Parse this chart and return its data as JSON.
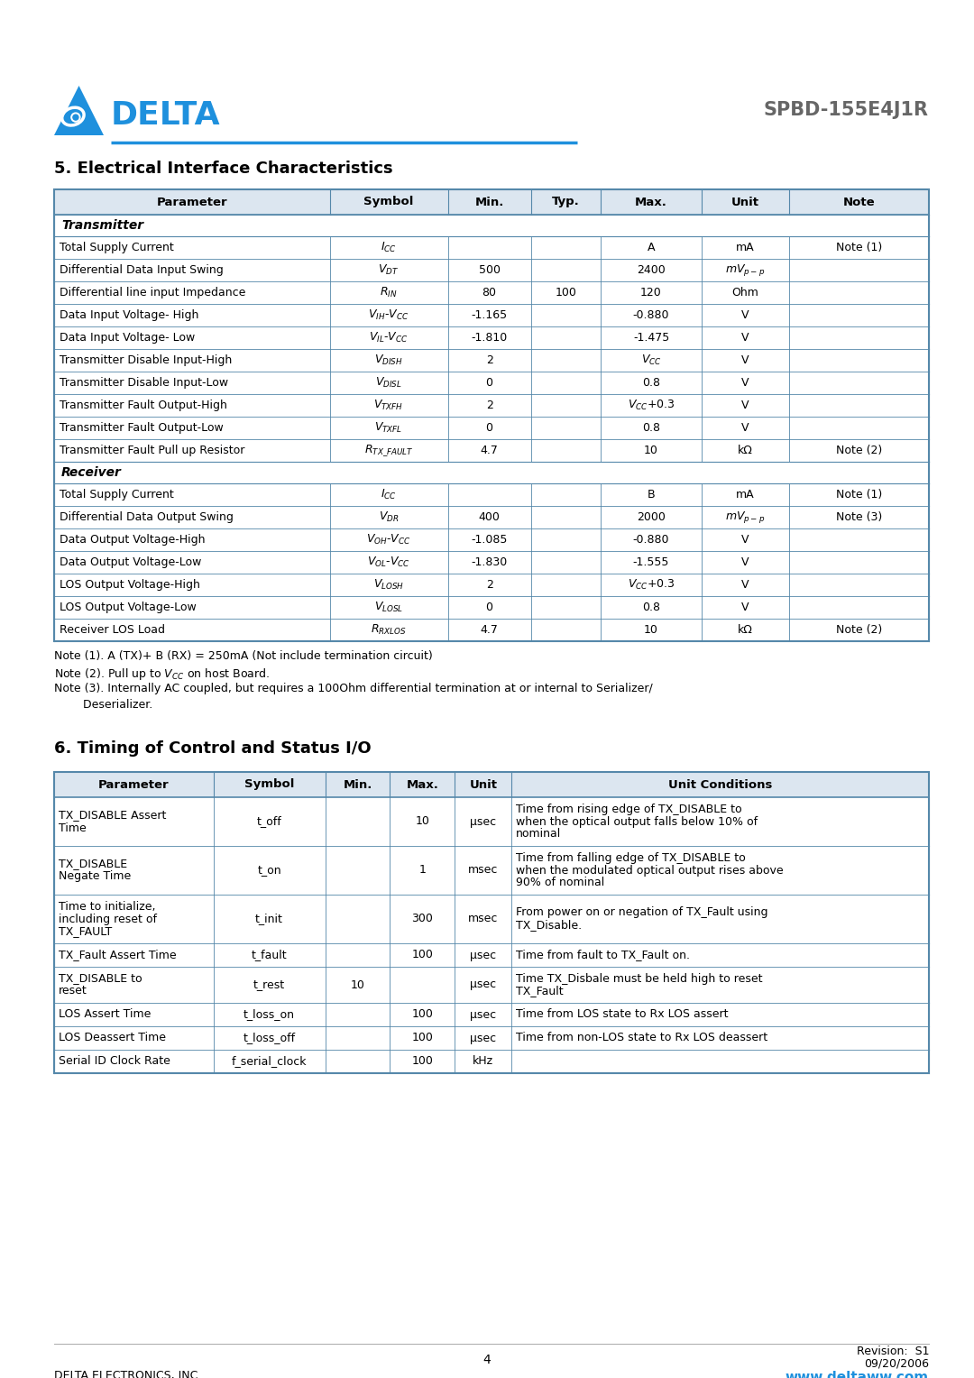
{
  "title_section5": "5. Electrical Interface Characteristics",
  "title_section6": "6. Timing of Control and Status I/O",
  "product_name": "SPBD-155E4J1R",
  "company_name": "DELTA ELECTRONICS, INC.",
  "website": "www.deltaww.com",
  "revision": "Revision:  S1",
  "date": "09/20/2006",
  "page": "4",
  "header_bg": "#dce6f0",
  "blue": "#1e90dd",
  "border_color": "#5588aa",
  "table1_headers": [
    "Parameter",
    "Symbol",
    "Min.",
    "Typ.",
    "Max.",
    "Unit",
    "Note"
  ],
  "table1_col_ratios": [
    0.315,
    0.135,
    0.095,
    0.08,
    0.115,
    0.1,
    0.16
  ],
  "table1_rows": [
    [
      "_section_Transmitter",
      "",
      "",
      "",
      "",
      "",
      ""
    ],
    [
      "Total Supply Current",
      "$I_{CC}$",
      "",
      "",
      "A",
      "mA",
      "Note (1)"
    ],
    [
      "Differential Data Input Swing",
      "$V_{DT}$",
      "500",
      "",
      "2400",
      "$mV_{p-p}$",
      ""
    ],
    [
      "Differential line input Impedance",
      "$R_{IN}$",
      "80",
      "100",
      "120",
      "Ohm",
      ""
    ],
    [
      "Data Input Voltage- High",
      "$V_{IH}$-$V_{CC}$",
      "-1.165",
      "",
      "-0.880",
      "V",
      ""
    ],
    [
      "Data Input Voltage- Low",
      "$V_{IL}$-$V_{CC}$",
      "-1.810",
      "",
      "-1.475",
      "V",
      ""
    ],
    [
      "Transmitter Disable Input-High",
      "$V_{DISH}$",
      "2",
      "",
      "$V_{CC}$",
      "V",
      ""
    ],
    [
      "Transmitter Disable Input-Low",
      "$V_{DISL}$",
      "0",
      "",
      "0.8",
      "V",
      ""
    ],
    [
      "Transmitter Fault Output-High",
      "$V_{TXFH}$",
      "2",
      "",
      "$V_{CC}$+0.3",
      "V",
      ""
    ],
    [
      "Transmitter Fault Output-Low",
      "$V_{TXFL}$",
      "0",
      "",
      "0.8",
      "V",
      ""
    ],
    [
      "Transmitter Fault Pull up Resistor",
      "$R_{TX\\_FAULT}$",
      "4.7",
      "",
      "10",
      "kΩ",
      "Note (2)"
    ],
    [
      "_section_Receiver",
      "",
      "",
      "",
      "",
      "",
      ""
    ],
    [
      "Total Supply Current",
      "$I_{CC}$",
      "",
      "",
      "B",
      "mA",
      "Note (1)"
    ],
    [
      "Differential Data Output Swing",
      "$V_{DR}$",
      "400",
      "",
      "2000",
      "$mV_{p-p}$",
      "Note (3)"
    ],
    [
      "Data Output Voltage-High",
      "$V_{OH}$-$V_{CC}$",
      "-1.085",
      "",
      "-0.880",
      "V",
      ""
    ],
    [
      "Data Output Voltage-Low",
      "$V_{OL}$-$V_{CC}$",
      "-1.830",
      "",
      "-1.555",
      "V",
      ""
    ],
    [
      "LOS Output Voltage-High",
      "$V_{LOSH}$",
      "2",
      "",
      "$V_{CC}$+0.3",
      "V",
      ""
    ],
    [
      "LOS Output Voltage-Low",
      "$V_{LOSL}$",
      "0",
      "",
      "0.8",
      "V",
      ""
    ],
    [
      "Receiver LOS Load",
      "$R_{RXLOS}$",
      "4.7",
      "",
      "10",
      "kΩ",
      "Note (2)"
    ]
  ],
  "table1_notes": [
    "Note (1). A (TX)+ B (RX) = 250mA (Not include termination circuit)",
    "Note (2). Pull up to $V_{CC}$ on host Board.",
    "Note (3). Internally AC coupled, but requires a 100Ohm differential termination at or internal to Serializer/",
    "        Deserializer."
  ],
  "table2_headers": [
    "Parameter",
    "Symbol",
    "Min.",
    "Max.",
    "Unit",
    "Unit Conditions"
  ],
  "table2_col_ratios": [
    0.182,
    0.128,
    0.074,
    0.074,
    0.065,
    0.477
  ],
  "table2_rows": [
    [
      "TX_DISABLE Assert\nTime",
      "t_off",
      "",
      "10",
      "μsec",
      "Time from rising edge of TX_DISABLE to\nwhen the optical output falls below 10% of\nnominal"
    ],
    [
      "TX_DISABLE\nNegate Time",
      "t_on",
      "",
      "1",
      "msec",
      "Time from falling edge of TX_DISABLE to\nwhen the modulated optical output rises above\n90% of nominal"
    ],
    [
      "Time to initialize,\nincluding reset of\nTX_FAULT",
      "t_init",
      "",
      "300",
      "msec",
      "From power on or negation of TX_Fault using\nTX_Disable."
    ],
    [
      "TX_Fault Assert Time",
      "t_fault",
      "",
      "100",
      "μsec",
      "Time from fault to TX_Fault on."
    ],
    [
      "TX_DISABLE to\nreset",
      "t_rest",
      "10",
      "",
      "μsec",
      "Time TX_Disbale must be held high to reset\nTX_Fault"
    ],
    [
      "LOS Assert Time",
      "t_loss_on",
      "",
      "100",
      "μsec",
      "Time from LOS state to Rx LOS assert"
    ],
    [
      "LOS Deassert Time",
      "t_loss_off",
      "",
      "100",
      "μsec",
      "Time from non-LOS state to Rx LOS deassert"
    ],
    [
      "Serial ID Clock Rate",
      "f_serial_clock",
      "",
      "100",
      "kHz",
      ""
    ]
  ]
}
